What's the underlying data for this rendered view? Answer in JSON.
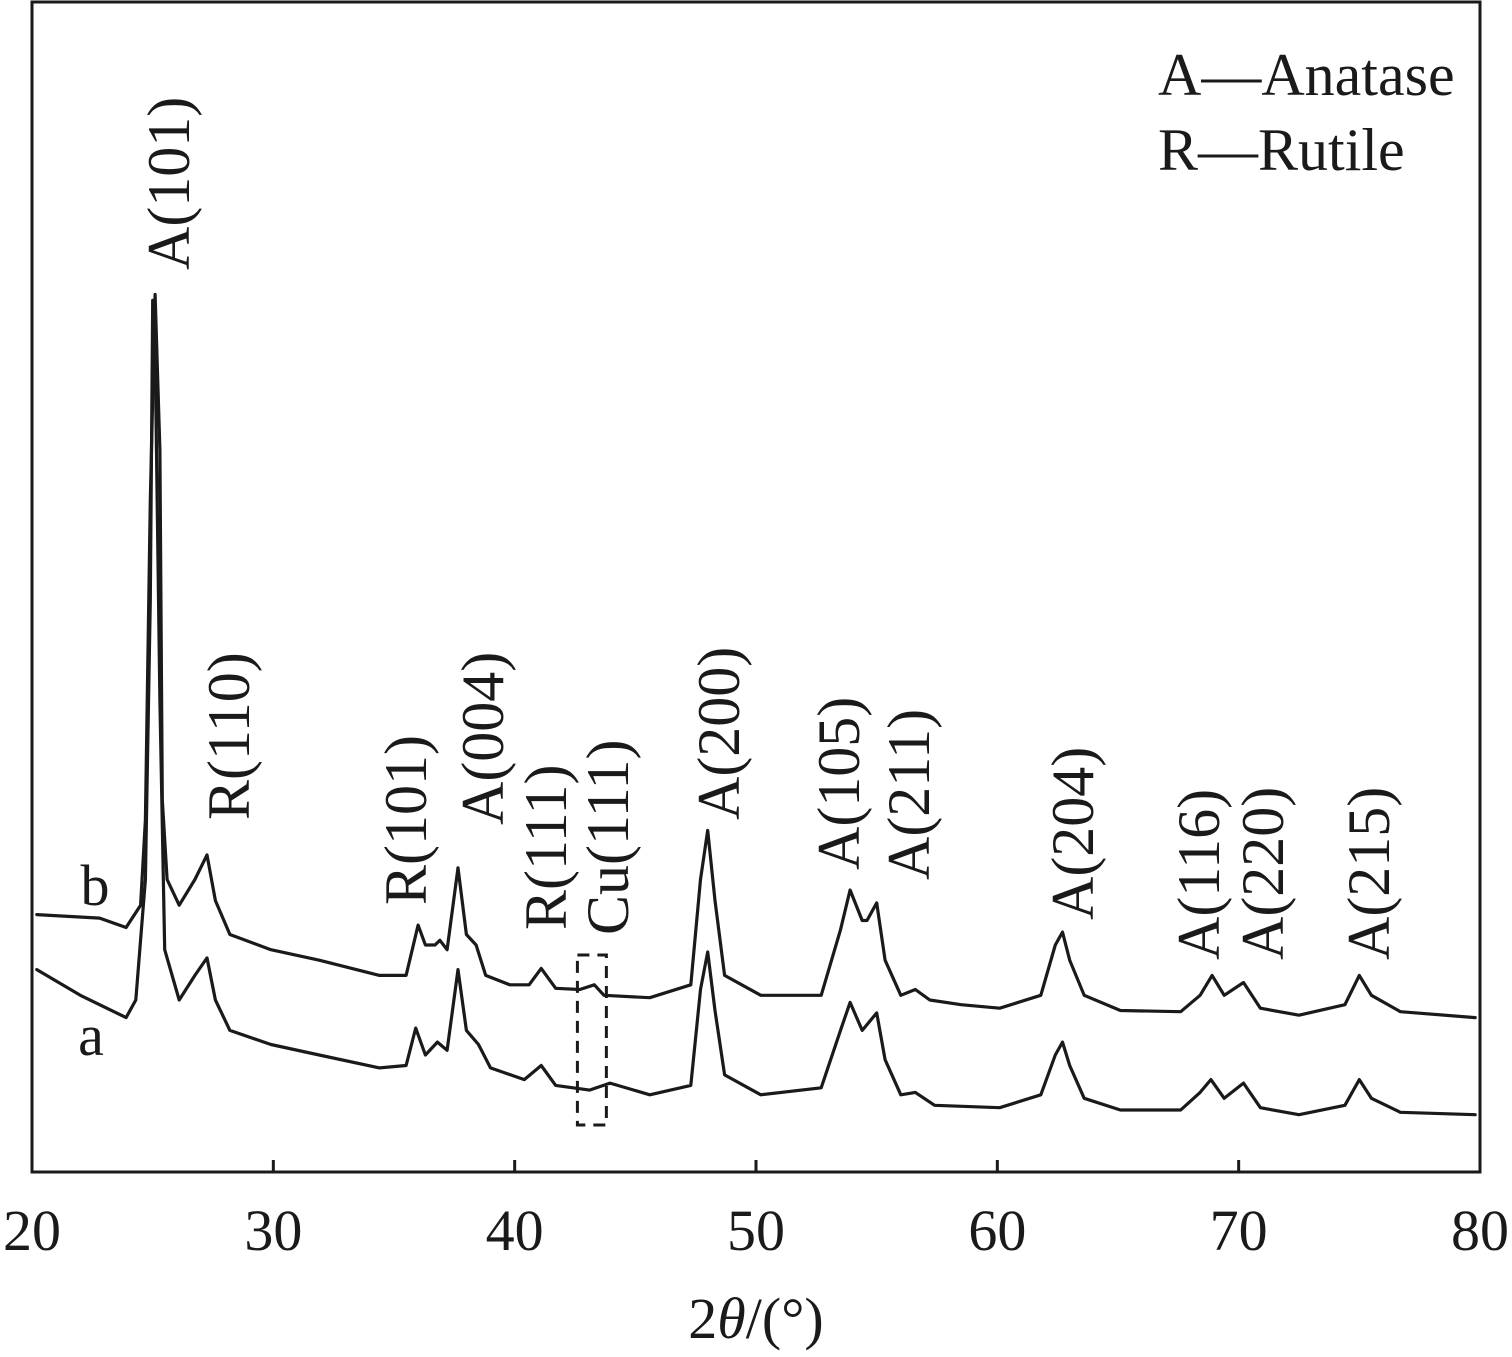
{
  "chart_data": {
    "type": "line",
    "xlabel": "2θ/(°)",
    "xlim": [
      20,
      80
    ],
    "ylim": [
      0,
      100
    ],
    "xticks": [
      20,
      30,
      40,
      50,
      60,
      70,
      80
    ],
    "yticks": [],
    "grid": false,
    "legend": {
      "placement": "top-right",
      "entries": [
        "A—Anatase",
        "R—Rutile"
      ]
    },
    "series": [
      {
        "name": "b",
        "points": [
          [
            20.2,
            22.0
          ],
          [
            22.8,
            21.7
          ],
          [
            23.9,
            20.9
          ],
          [
            24.5,
            22.8
          ],
          [
            24.7,
            30.1
          ],
          [
            24.9,
            57.4
          ],
          [
            25.1,
            75.0
          ],
          [
            25.3,
            61.7
          ],
          [
            25.4,
            31.8
          ],
          [
            25.6,
            25.0
          ],
          [
            26.1,
            22.8
          ],
          [
            26.75,
            25.0
          ],
          [
            27.25,
            27.1
          ],
          [
            27.6,
            23.2
          ],
          [
            28.2,
            20.3
          ],
          [
            29.9,
            19.0
          ],
          [
            31.9,
            18.1
          ],
          [
            34.4,
            16.8
          ],
          [
            35.5,
            16.8
          ],
          [
            36.0,
            21.1
          ],
          [
            36.3,
            19.4
          ],
          [
            36.7,
            19.4
          ],
          [
            36.9,
            19.8
          ],
          [
            37.2,
            19.0
          ],
          [
            37.65,
            26.0
          ],
          [
            38.0,
            20.3
          ],
          [
            38.4,
            19.4
          ],
          [
            38.8,
            16.8
          ],
          [
            39.8,
            16.0
          ],
          [
            40.6,
            16.0
          ],
          [
            41.1,
            17.4
          ],
          [
            41.7,
            15.7
          ],
          [
            42.7,
            15.6
          ],
          [
            43.3,
            16.0
          ],
          [
            43.7,
            15.1
          ],
          [
            45.6,
            14.9
          ],
          [
            47.3,
            16.0
          ],
          [
            47.7,
            25.0
          ],
          [
            48.0,
            29.2
          ],
          [
            48.3,
            23.2
          ],
          [
            48.7,
            16.8
          ],
          [
            50.2,
            15.1
          ],
          [
            52.7,
            15.1
          ],
          [
            53.5,
            20.7
          ],
          [
            53.9,
            24.1
          ],
          [
            54.4,
            21.5
          ],
          [
            54.6,
            21.5
          ],
          [
            55.0,
            23.0
          ],
          [
            55.35,
            18.1
          ],
          [
            56.0,
            15.1
          ],
          [
            56.6,
            15.6
          ],
          [
            57.2,
            14.7
          ],
          [
            58.5,
            14.3
          ],
          [
            60.1,
            14.0
          ],
          [
            61.8,
            15.1
          ],
          [
            62.4,
            19.4
          ],
          [
            62.7,
            20.5
          ],
          [
            63.0,
            18.1
          ],
          [
            63.6,
            15.1
          ],
          [
            65.1,
            13.8
          ],
          [
            67.6,
            13.7
          ],
          [
            68.4,
            15.1
          ],
          [
            68.9,
            16.8
          ],
          [
            69.4,
            15.1
          ],
          [
            70.2,
            16.2
          ],
          [
            70.9,
            14.0
          ],
          [
            72.5,
            13.4
          ],
          [
            74.4,
            14.3
          ],
          [
            75.0,
            16.8
          ],
          [
            75.5,
            15.1
          ],
          [
            76.7,
            13.7
          ],
          [
            79.8,
            13.2
          ]
        ]
      },
      {
        "name": "a",
        "points": [
          [
            20.2,
            17.3
          ],
          [
            22.0,
            15.1
          ],
          [
            23.9,
            13.2
          ],
          [
            24.3,
            14.7
          ],
          [
            24.7,
            25.0
          ],
          [
            24.9,
            48.9
          ],
          [
            25.0,
            74.5
          ],
          [
            25.1,
            70.3
          ],
          [
            25.3,
            40.3
          ],
          [
            25.5,
            19.0
          ],
          [
            26.1,
            14.7
          ],
          [
            26.75,
            16.8
          ],
          [
            27.25,
            18.3
          ],
          [
            27.6,
            14.7
          ],
          [
            28.2,
            12.1
          ],
          [
            29.9,
            10.9
          ],
          [
            31.9,
            10.0
          ],
          [
            34.4,
            8.9
          ],
          [
            35.5,
            9.1
          ],
          [
            35.9,
            12.3
          ],
          [
            36.3,
            10.0
          ],
          [
            36.8,
            11.1
          ],
          [
            37.2,
            10.4
          ],
          [
            37.65,
            17.3
          ],
          [
            38.0,
            12.1
          ],
          [
            38.5,
            10.9
          ],
          [
            39.0,
            8.9
          ],
          [
            40.4,
            7.9
          ],
          [
            41.1,
            9.1
          ],
          [
            41.7,
            7.4
          ],
          [
            43.1,
            7.0
          ],
          [
            43.95,
            7.6
          ],
          [
            45.6,
            6.6
          ],
          [
            47.3,
            7.4
          ],
          [
            47.7,
            15.6
          ],
          [
            48.0,
            18.8
          ],
          [
            48.3,
            13.8
          ],
          [
            48.7,
            8.3
          ],
          [
            50.2,
            6.6
          ],
          [
            52.7,
            7.2
          ],
          [
            53.5,
            12.1
          ],
          [
            53.9,
            14.5
          ],
          [
            54.4,
            12.1
          ],
          [
            54.6,
            12.6
          ],
          [
            55.0,
            13.6
          ],
          [
            55.35,
            9.6
          ],
          [
            56.0,
            6.6
          ],
          [
            56.6,
            6.8
          ],
          [
            57.4,
            5.7
          ],
          [
            60.1,
            5.5
          ],
          [
            61.8,
            6.6
          ],
          [
            62.4,
            10.0
          ],
          [
            62.7,
            11.1
          ],
          [
            63.0,
            9.1
          ],
          [
            63.6,
            6.3
          ],
          [
            65.1,
            5.3
          ],
          [
            67.6,
            5.3
          ],
          [
            68.4,
            6.8
          ],
          [
            68.85,
            7.9
          ],
          [
            69.4,
            6.3
          ],
          [
            70.2,
            7.6
          ],
          [
            70.9,
            5.5
          ],
          [
            72.5,
            4.9
          ],
          [
            74.4,
            5.7
          ],
          [
            75.0,
            7.9
          ],
          [
            75.5,
            6.3
          ],
          [
            76.7,
            5.1
          ],
          [
            79.8,
            4.9
          ]
        ]
      }
    ],
    "annotations": [
      {
        "text": "A(101)",
        "x": 25.3
      },
      {
        "text": "R(110)",
        "x": 27.4
      },
      {
        "text": "R(101)",
        "x": 36.1
      },
      {
        "text": "A(004)",
        "x": 37.8
      },
      {
        "text": "R(111)",
        "x": 41.2
      },
      {
        "text": "Cu(111)",
        "x": 43.3
      },
      {
        "text": "A(200)",
        "x": 48.0
      },
      {
        "text": "A(105)",
        "x": 53.9
      },
      {
        "text": "A(211)",
        "x": 55.1
      },
      {
        "text": "A(204)",
        "x": 62.7
      },
      {
        "text": "A(116)",
        "x": 68.8
      },
      {
        "text": "A(220)",
        "x": 70.2
      },
      {
        "text": "A(215)",
        "x": 75.0
      }
    ],
    "highlight": {
      "x": [
        42.6,
        43.8
      ],
      "style": "dashed"
    }
  }
}
